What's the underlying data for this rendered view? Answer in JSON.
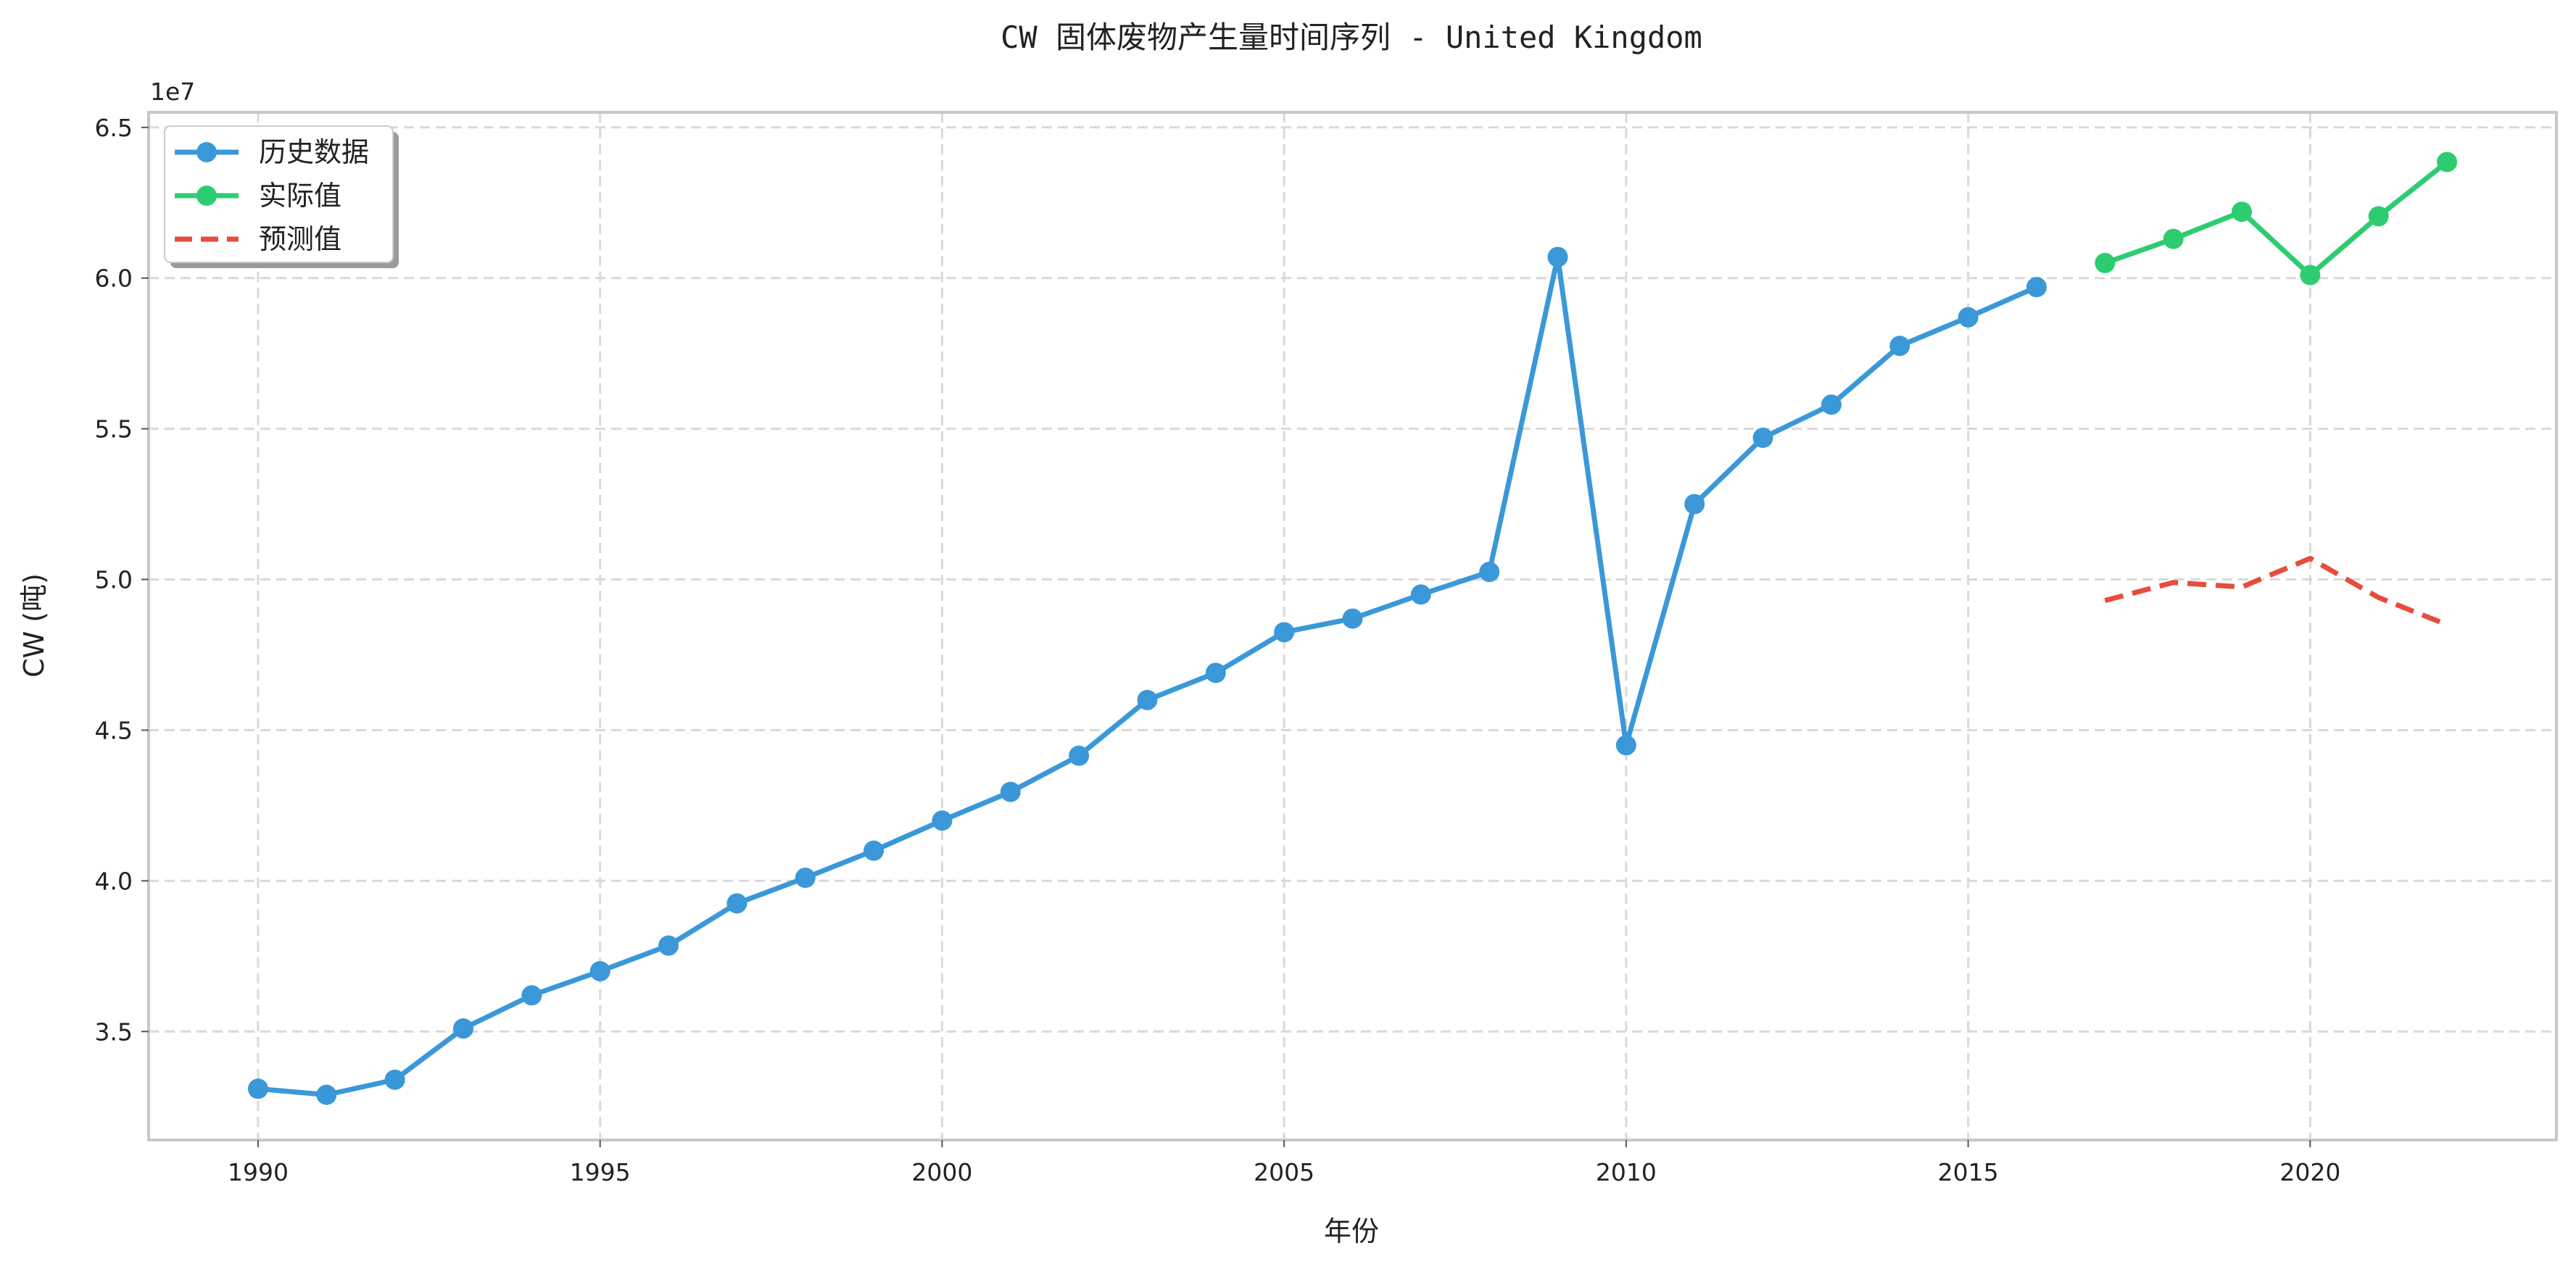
{
  "chart_data": {
    "type": "line",
    "title": "CW 固体废物产生量时间序列 - United Kingdom",
    "xlabel": "年份",
    "ylabel": "CW (吨)",
    "y_offset_label": "1e7",
    "xlim": [
      1988.4,
      2023.6
    ],
    "ylim": [
      31400000,
      65500000
    ],
    "x_ticks": [
      1990,
      1995,
      2000,
      2005,
      2010,
      2015,
      2020
    ],
    "y_ticks": [
      {
        "value": 35000000,
        "label": "3.5"
      },
      {
        "value": 40000000,
        "label": "4.0"
      },
      {
        "value": 45000000,
        "label": "4.5"
      },
      {
        "value": 50000000,
        "label": "5.0"
      },
      {
        "value": 55000000,
        "label": "5.5"
      },
      {
        "value": 60000000,
        "label": "6.0"
      },
      {
        "value": 65000000,
        "label": "6.5"
      }
    ],
    "grid": true,
    "legend_position": "top-left",
    "series": [
      {
        "name": "历史数据",
        "color": "#3a98d8",
        "style": "solid",
        "markers": true,
        "x": [
          1990,
          1991,
          1992,
          1993,
          1994,
          1995,
          1996,
          1997,
          1998,
          1999,
          2000,
          2001,
          2002,
          2003,
          2004,
          2005,
          2006,
          2007,
          2008,
          2009,
          2010,
          2011,
          2012,
          2013,
          2014,
          2015,
          2016
        ],
        "y": [
          33100000,
          32900000,
          33400000,
          35100000,
          36200000,
          37000000,
          37850000,
          39250000,
          40100000,
          41000000,
          42000000,
          42950000,
          44150000,
          46000000,
          46900000,
          48250000,
          48700000,
          49500000,
          50250000,
          60700000,
          44500000,
          52500000,
          54700000,
          55800000,
          57750000,
          58700000,
          59700000
        ]
      },
      {
        "name": "实际值",
        "color": "#2ecc71",
        "style": "solid",
        "markers": true,
        "x": [
          2017,
          2018,
          2019,
          2020,
          2021,
          2022
        ],
        "y": [
          60500000,
          61300000,
          62200000,
          60100000,
          62050000,
          63850000
        ]
      },
      {
        "name": "预测值",
        "color": "#e74c3c",
        "style": "dashed",
        "markers": false,
        "x": [
          2017,
          2018,
          2019,
          2020,
          2021,
          2022
        ],
        "y": [
          49300000,
          49900000,
          49750000,
          50700000,
          49400000,
          48500000
        ]
      }
    ]
  }
}
